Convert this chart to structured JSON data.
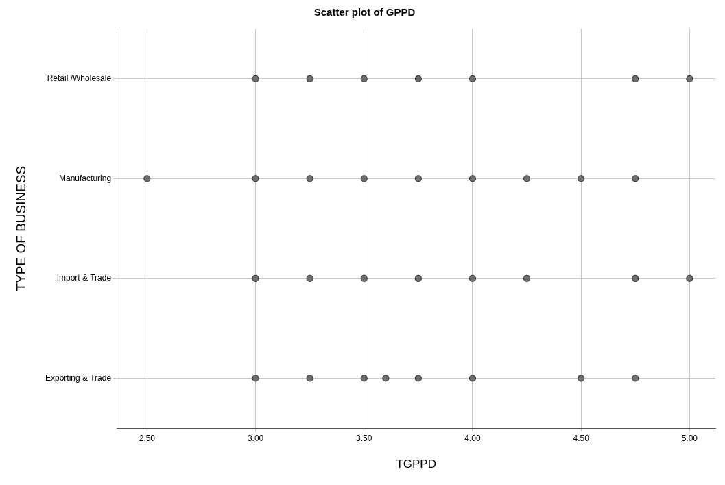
{
  "chart_data": {
    "type": "scatter",
    "title": "Scatter plot of GPPD",
    "xlabel": "TGPPD",
    "ylabel": "TYPE OF BUSINESS",
    "categories": [
      "Retail /Wholesale",
      "Manufacturing",
      "Import & Trade",
      "Exporting & Trade"
    ],
    "orientation": "horizontal",
    "series": [
      {
        "color": "#6e6e6e",
        "values": [
          3.0,
          2.5,
          3.0,
          3.0
        ]
      },
      {
        "color": "#6e6e6e",
        "values": [
          3.25,
          3.0,
          3.25,
          3.25
        ]
      },
      {
        "color": "#6e6e6e",
        "values": [
          3.5,
          3.25,
          3.5,
          3.5
        ]
      },
      {
        "color": "#6e6e6e",
        "values": [
          3.75,
          3.5,
          3.75,
          3.6
        ]
      },
      {
        "color": "#6e6e6e",
        "values": [
          4.0,
          3.75,
          4.0,
          3.75
        ]
      },
      {
        "color": "#6e6e6e",
        "values": [
          4.75,
          4.0,
          4.25,
          4.0
        ]
      },
      {
        "color": "#6e6e6e",
        "values": [
          5.0,
          4.25,
          4.75,
          4.5
        ]
      },
      {
        "color": "#6e6e6e",
        "values": [
          null,
          4.5,
          5.0,
          4.75
        ]
      },
      {
        "color": "#6e6e6e",
        "values": [
          null,
          4.75,
          null,
          null
        ]
      }
    ],
    "xlim": [
      2.36,
      5.12
    ],
    "xticks": [
      {
        "value": 2.5,
        "label": "2.50"
      },
      {
        "value": 3,
        "label": "3.00"
      },
      {
        "value": 3.5,
        "label": "3.50"
      },
      {
        "value": 4,
        "label": "4.00"
      },
      {
        "value": 4.5,
        "label": "4.50"
      },
      {
        "value": 5,
        "label": "5.00"
      }
    ],
    "grid": true,
    "marker": "circle"
  }
}
